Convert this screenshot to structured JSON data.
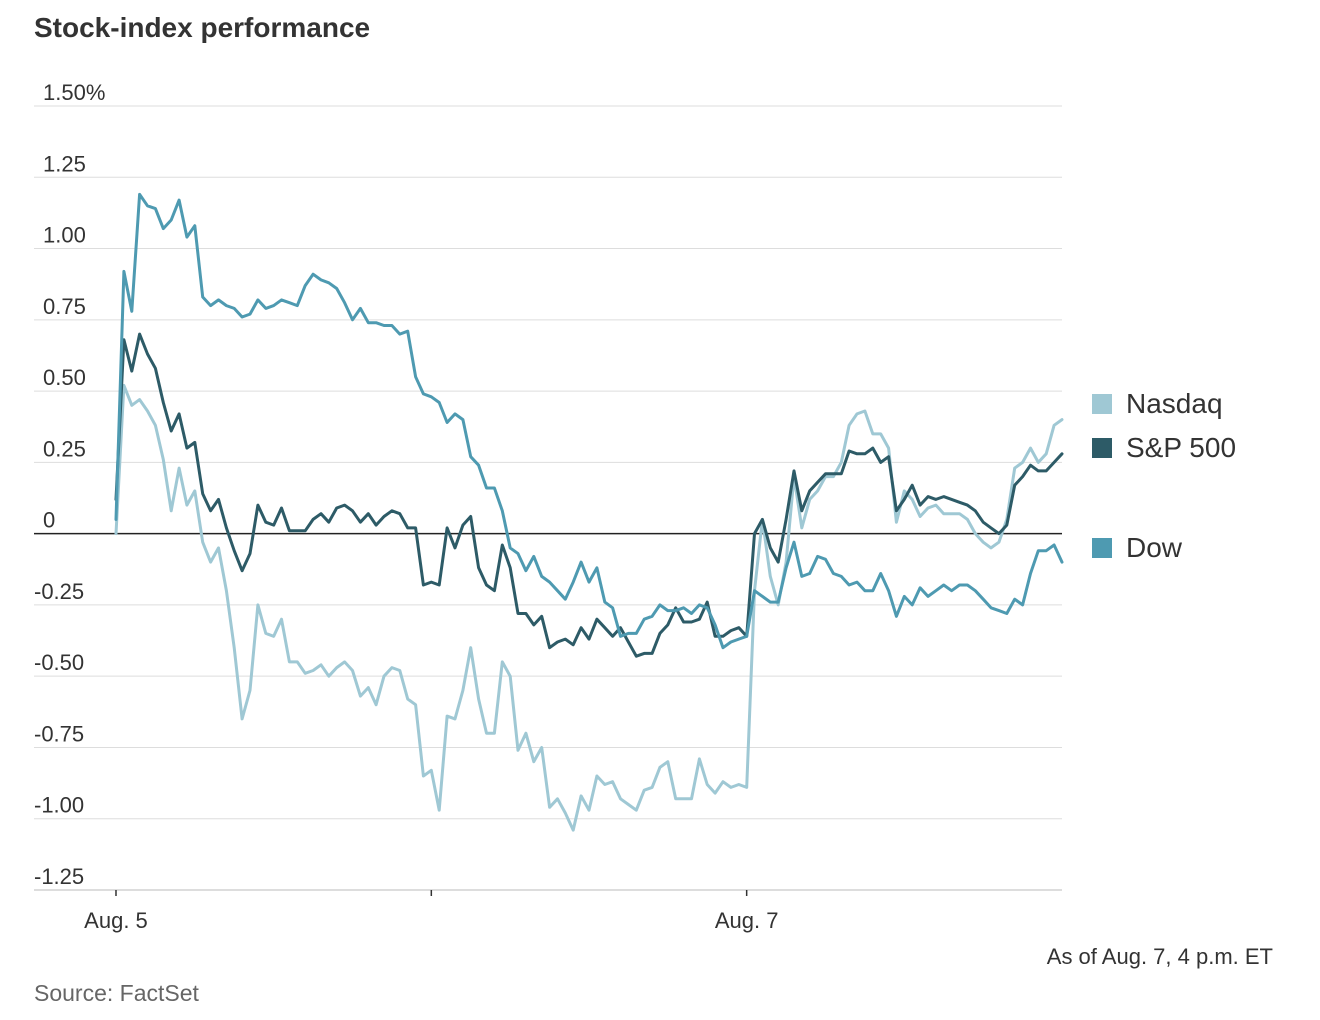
{
  "chart_data": {
    "type": "line",
    "title": "Stock-index performance",
    "y_unit": "%",
    "ylim": [
      -1.25,
      1.5
    ],
    "yticks": [
      1.5,
      1.25,
      1.0,
      0.75,
      0.5,
      0.25,
      0,
      -0.25,
      -0.5,
      -0.75,
      -1.0,
      -1.25
    ],
    "ytick_labels": [
      "1.50%",
      "1.25",
      "1.00",
      "0.75",
      "0.50",
      "0.25",
      "0",
      "-0.25",
      "-0.50",
      "-0.75",
      "-1.00",
      "-1.25"
    ],
    "x_range": [
      -0.26,
      3.0
    ],
    "xticks": [
      0,
      1,
      2
    ],
    "xtick_labels": [
      "Aug. 5",
      "",
      "Aug. 7"
    ],
    "grid": true,
    "legend_position": "right",
    "series": [
      {
        "name": "Nasdaq",
        "color": "#9fc8d4",
        "x": [
          0,
          0.025,
          0.05,
          0.075,
          0.1,
          0.125,
          0.15,
          0.175,
          0.2,
          0.225,
          0.25,
          0.275,
          0.3,
          0.325,
          0.35,
          0.375,
          0.4,
          0.425,
          0.45,
          0.475,
          0.5,
          0.525,
          0.55,
          0.575,
          0.6,
          0.625,
          0.65,
          0.675,
          0.7,
          0.725,
          0.75,
          0.775,
          0.8,
          0.825,
          0.85,
          0.875,
          0.9,
          0.925,
          0.95,
          0.975,
          1.0,
          1.025,
          1.05,
          1.075,
          1.1,
          1.125,
          1.15,
          1.175,
          1.2,
          1.225,
          1.25,
          1.275,
          1.3,
          1.325,
          1.35,
          1.375,
          1.4,
          1.425,
          1.45,
          1.475,
          1.5,
          1.525,
          1.55,
          1.575,
          1.6,
          1.625,
          1.65,
          1.675,
          1.7,
          1.725,
          1.75,
          1.775,
          1.8,
          1.825,
          1.85,
          1.875,
          1.9,
          1.925,
          1.95,
          1.975,
          2.0,
          2.025,
          2.05,
          2.075,
          2.1,
          2.125,
          2.15,
          2.175,
          2.2,
          2.225,
          2.25,
          2.275,
          2.3,
          2.325,
          2.35,
          2.375,
          2.4,
          2.425,
          2.45,
          2.475,
          2.5,
          2.525,
          2.55,
          2.575,
          2.6,
          2.625,
          2.65,
          2.675,
          2.7,
          2.725,
          2.75,
          2.775,
          2.8,
          2.825,
          2.85,
          2.875,
          2.9,
          2.925,
          2.95,
          2.975,
          3.0
        ],
        "values": [
          0,
          0.52,
          0.45,
          0.47,
          0.43,
          0.38,
          0.26,
          0.08,
          0.23,
          0.1,
          0.15,
          -0.03,
          -0.1,
          -0.05,
          -0.2,
          -0.4,
          -0.65,
          -0.55,
          -0.25,
          -0.35,
          -0.36,
          -0.3,
          -0.45,
          -0.45,
          -0.49,
          -0.48,
          -0.46,
          -0.5,
          -0.47,
          -0.45,
          -0.48,
          -0.57,
          -0.54,
          -0.6,
          -0.5,
          -0.47,
          -0.48,
          -0.58,
          -0.6,
          -0.85,
          -0.83,
          -0.97,
          -0.64,
          -0.65,
          -0.55,
          -0.4,
          -0.58,
          -0.7,
          -0.7,
          -0.45,
          -0.5,
          -0.76,
          -0.7,
          -0.8,
          -0.75,
          -0.96,
          -0.93,
          -0.98,
          -1.04,
          -0.92,
          -0.97,
          -0.85,
          -0.88,
          -0.87,
          -0.93,
          -0.95,
          -0.97,
          -0.9,
          -0.89,
          -0.82,
          -0.8,
          -0.93,
          -0.93,
          -0.93,
          -0.79,
          -0.88,
          -0.91,
          -0.87,
          -0.89,
          -0.88,
          -0.89,
          -0.2,
          0.05,
          -0.15,
          -0.25,
          -0.1,
          0.2,
          0.02,
          0.12,
          0.15,
          0.2,
          0.2,
          0.25,
          0.38,
          0.42,
          0.43,
          0.35,
          0.35,
          0.3,
          0.04,
          0.15,
          0.12,
          0.06,
          0.09,
          0.1,
          0.07,
          0.07,
          0.07,
          0.05,
          0,
          -0.03,
          -0.05,
          -0.03,
          0.05,
          0.23,
          0.25,
          0.3,
          0.25,
          0.28,
          0.38,
          0.4
        ]
      },
      {
        "name": "S&P 500",
        "color": "#2d5b67",
        "x": [
          0,
          0.025,
          0.05,
          0.075,
          0.1,
          0.125,
          0.15,
          0.175,
          0.2,
          0.225,
          0.25,
          0.275,
          0.3,
          0.325,
          0.35,
          0.375,
          0.4,
          0.425,
          0.45,
          0.475,
          0.5,
          0.525,
          0.55,
          0.575,
          0.6,
          0.625,
          0.65,
          0.675,
          0.7,
          0.725,
          0.75,
          0.775,
          0.8,
          0.825,
          0.85,
          0.875,
          0.9,
          0.925,
          0.95,
          0.975,
          1.0,
          1.025,
          1.05,
          1.075,
          1.1,
          1.125,
          1.15,
          1.175,
          1.2,
          1.225,
          1.25,
          1.275,
          1.3,
          1.325,
          1.35,
          1.375,
          1.4,
          1.425,
          1.45,
          1.475,
          1.5,
          1.525,
          1.55,
          1.575,
          1.6,
          1.625,
          1.65,
          1.675,
          1.7,
          1.725,
          1.75,
          1.775,
          1.8,
          1.825,
          1.85,
          1.875,
          1.9,
          1.925,
          1.95,
          1.975,
          2.0,
          2.025,
          2.05,
          2.075,
          2.1,
          2.125,
          2.15,
          2.175,
          2.2,
          2.225,
          2.25,
          2.275,
          2.3,
          2.325,
          2.35,
          2.375,
          2.4,
          2.425,
          2.45,
          2.475,
          2.5,
          2.525,
          2.55,
          2.575,
          2.6,
          2.625,
          2.65,
          2.675,
          2.7,
          2.725,
          2.75,
          2.775,
          2.8,
          2.825,
          2.85,
          2.875,
          2.9,
          2.925,
          2.95,
          2.975,
          3.0
        ],
        "values": [
          0.12,
          0.68,
          0.57,
          0.7,
          0.63,
          0.58,
          0.46,
          0.36,
          0.42,
          0.3,
          0.32,
          0.14,
          0.08,
          0.12,
          0.02,
          -0.06,
          -0.13,
          -0.07,
          0.1,
          0.04,
          0.03,
          0.09,
          0.01,
          0.01,
          0.01,
          0.05,
          0.07,
          0.04,
          0.09,
          0.1,
          0.08,
          0.04,
          0.07,
          0.03,
          0.06,
          0.08,
          0.07,
          0.02,
          0.02,
          -0.18,
          -0.17,
          -0.18,
          0.02,
          -0.05,
          0.03,
          0.06,
          -0.12,
          -0.18,
          -0.2,
          -0.04,
          -0.12,
          -0.28,
          -0.28,
          -0.32,
          -0.29,
          -0.4,
          -0.38,
          -0.37,
          -0.39,
          -0.33,
          -0.37,
          -0.3,
          -0.33,
          -0.36,
          -0.33,
          -0.38,
          -0.43,
          -0.42,
          -0.42,
          -0.35,
          -0.32,
          -0.26,
          -0.31,
          -0.31,
          -0.3,
          -0.24,
          -0.36,
          -0.36,
          -0.34,
          -0.33,
          -0.36,
          0,
          0.05,
          -0.05,
          -0.1,
          0.05,
          0.22,
          0.08,
          0.15,
          0.18,
          0.21,
          0.21,
          0.21,
          0.29,
          0.28,
          0.28,
          0.3,
          0.25,
          0.27,
          0.08,
          0.12,
          0.17,
          0.1,
          0.13,
          0.12,
          0.13,
          0.12,
          0.11,
          0.1,
          0.08,
          0.04,
          0.02,
          0,
          0.03,
          0.17,
          0.2,
          0.24,
          0.22,
          0.22,
          0.25,
          0.28
        ]
      },
      {
        "name": "Dow",
        "color": "#4e9ab1",
        "x": [
          0,
          0.025,
          0.05,
          0.075,
          0.1,
          0.125,
          0.15,
          0.175,
          0.2,
          0.225,
          0.25,
          0.275,
          0.3,
          0.325,
          0.35,
          0.375,
          0.4,
          0.425,
          0.45,
          0.475,
          0.5,
          0.525,
          0.55,
          0.575,
          0.6,
          0.625,
          0.65,
          0.675,
          0.7,
          0.725,
          0.75,
          0.775,
          0.8,
          0.825,
          0.85,
          0.875,
          0.9,
          0.925,
          0.95,
          0.975,
          1.0,
          1.025,
          1.05,
          1.075,
          1.1,
          1.125,
          1.15,
          1.175,
          1.2,
          1.225,
          1.25,
          1.275,
          1.3,
          1.325,
          1.35,
          1.375,
          1.4,
          1.425,
          1.45,
          1.475,
          1.5,
          1.525,
          1.55,
          1.575,
          1.6,
          1.625,
          1.65,
          1.675,
          1.7,
          1.725,
          1.75,
          1.775,
          1.8,
          1.825,
          1.85,
          1.875,
          1.9,
          1.925,
          1.95,
          1.975,
          2.0,
          2.025,
          2.05,
          2.075,
          2.1,
          2.125,
          2.15,
          2.175,
          2.2,
          2.225,
          2.25,
          2.275,
          2.3,
          2.325,
          2.35,
          2.375,
          2.4,
          2.425,
          2.45,
          2.475,
          2.5,
          2.525,
          2.55,
          2.575,
          2.6,
          2.625,
          2.65,
          2.675,
          2.7,
          2.725,
          2.75,
          2.775,
          2.8,
          2.825,
          2.85,
          2.875,
          2.9,
          2.925,
          2.95,
          2.975,
          3.0
        ],
        "values": [
          0.05,
          0.92,
          0.78,
          1.19,
          1.15,
          1.14,
          1.07,
          1.1,
          1.17,
          1.04,
          1.08,
          0.83,
          0.8,
          0.82,
          0.8,
          0.79,
          0.76,
          0.77,
          0.82,
          0.79,
          0.8,
          0.82,
          0.81,
          0.8,
          0.87,
          0.91,
          0.89,
          0.88,
          0.86,
          0.81,
          0.75,
          0.79,
          0.74,
          0.74,
          0.73,
          0.73,
          0.7,
          0.71,
          0.55,
          0.49,
          0.48,
          0.46,
          0.39,
          0.42,
          0.4,
          0.27,
          0.24,
          0.16,
          0.16,
          0.08,
          -0.05,
          -0.07,
          -0.13,
          -0.08,
          -0.15,
          -0.17,
          -0.2,
          -0.23,
          -0.17,
          -0.1,
          -0.17,
          -0.12,
          -0.24,
          -0.26,
          -0.36,
          -0.35,
          -0.35,
          -0.3,
          -0.29,
          -0.25,
          -0.27,
          -0.27,
          -0.26,
          -0.28,
          -0.25,
          -0.26,
          -0.32,
          -0.4,
          -0.38,
          -0.37,
          -0.36,
          -0.2,
          -0.22,
          -0.24,
          -0.24,
          -0.12,
          -0.03,
          -0.15,
          -0.14,
          -0.08,
          -0.09,
          -0.14,
          -0.15,
          -0.18,
          -0.17,
          -0.2,
          -0.2,
          -0.14,
          -0.2,
          -0.29,
          -0.22,
          -0.25,
          -0.19,
          -0.22,
          -0.2,
          -0.18,
          -0.2,
          -0.18,
          -0.18,
          -0.2,
          -0.23,
          -0.26,
          -0.27,
          -0.28,
          -0.23,
          -0.25,
          -0.14,
          -0.06,
          -0.06,
          -0.04,
          -0.1
        ]
      }
    ],
    "note": "As of Aug. 7, 4 p.m. ET",
    "source": "Source: FactSet"
  }
}
